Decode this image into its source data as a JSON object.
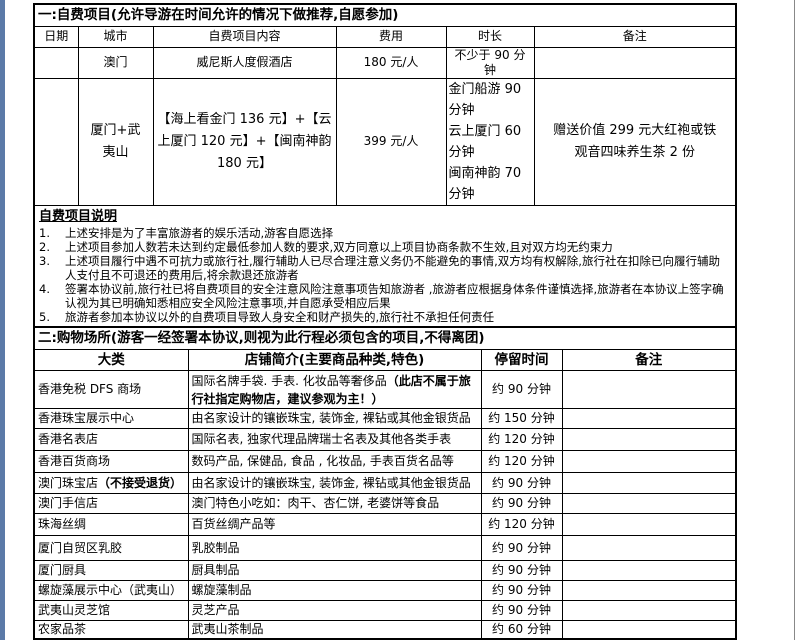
{
  "section1": {
    "title": "一:自费项目(允许导游在时间允许的情况下做推荐,自愿参加)",
    "headers": [
      "日期",
      "城市",
      "自费项目内容",
      "费用",
      "时长",
      "备注"
    ],
    "rows": [
      {
        "date": "",
        "city": "澳门",
        "content": "威尼斯人度假酒店",
        "fee": "180 元/人",
        "duration": "不少于 90 分钟",
        "note": ""
      },
      {
        "date": "",
        "city": "厦门+武夷山",
        "content": "【海上看金门 136 元】+【云上厦门 120 元】+【闽南神韵 180 元】",
        "fee": "399 元/人",
        "duration_lines": [
          "金门船游 90分钟",
          "云上厦门 60分钟",
          "闽南神韵 70分钟"
        ],
        "note": "赠送价值 299 元大红袍或铁观音四味养生茶 2 份"
      }
    ]
  },
  "explanation": {
    "title": "自费项目说明",
    "items": [
      {
        "n": "1.",
        "text": "上述安排是为了丰富旅游者的娱乐活动,游客自愿选择"
      },
      {
        "n": "2.",
        "text": "上述项目参加人数若未达到约定最低参加人数的要求,双方同意以上项目协商条款不生效,且对双方均无约束力"
      },
      {
        "n": "3.",
        "text": "上述项目履行中遇不可抗力或旅行社,履行辅助人已尽合理注意义务仍不能避免的事情,双方均有权解除,旅行社在扣除已向履行辅助人支付且不可退还的费用后,将余款退还旅游者"
      },
      {
        "n": "4.",
        "text": "签署本协议前,旅行社已将自费项目的安全注意风险注意事项告知旅游者 ,旅游者应根据身体条件谨慎选择,旅游者在本协议上签字确认视为其已明确知悉相应安全风险注意事项,并自愿承受相应后果"
      },
      {
        "n": "5.",
        "text": "旅游者参加本协议以外的自费项目导致人身安全和财产损失的,旅行社不承担任何责任"
      }
    ]
  },
  "section2": {
    "title": "二:购物场所(游客一经签署本协议,则视为此行程必须包含的项目,不得离团)",
    "headers": [
      "大类",
      "店铺简介(主要商品种类,特色)",
      "停留时间",
      "备注"
    ],
    "rows": [
      {
        "name": "香港免税 DFS 商场",
        "desc": "国际名牌手袋. 手表. 化妆品等奢侈品",
        "desc_bold": "（此店不属于旅行社指定购物店，建议参观为主！）",
        "time": "约 90 分钟",
        "note": ""
      },
      {
        "name": "香港珠宝展示中心",
        "desc": "由名家设计的镶嵌珠宝, 装饰金, 裸钻或其他金银货品",
        "time": "约 150 分钟",
        "note": ""
      },
      {
        "name": "香港名表店",
        "desc": "国际名表, 独家代理品牌瑞士名表及其他各类手表",
        "time": "约 120 分钟",
        "note": ""
      },
      {
        "name": "香港百货商场",
        "desc": "数码产品, 保健品, 食品 , 化妆品, 手表百货名品等",
        "time": "约 120 分钟",
        "note": ""
      },
      {
        "name": "澳门珠宝店",
        "name_bold": "（不接受退货）",
        "desc": "由名家设计的镶嵌珠宝, 装饰金, 裸钻或其他金银货品",
        "time": "约 90 分钟",
        "note": ""
      },
      {
        "name": "澳门手信店",
        "desc": "澳门特色小吃如：肉干、杏仁饼, 老婆饼等食品",
        "time": "约 90 分钟",
        "note": ""
      },
      {
        "name": "珠海丝绸",
        "desc": "百货丝绸产品等",
        "time": "约 120 分钟",
        "note": ""
      },
      {
        "name": "厦门自贸区乳胶",
        "desc": "乳胶制品",
        "time": "约 90 分钟",
        "note": ""
      },
      {
        "name": "厦门厨具",
        "desc": "厨具制品",
        "time": "约 90 分钟",
        "note": ""
      },
      {
        "name": "螺旋藻展示中心（武夷山）",
        "desc": "螺旋藻制品",
        "time": "约 90 分钟",
        "note": ""
      },
      {
        "name": "武夷山灵芝馆",
        "desc": "灵芝产品",
        "time": "约 90 分钟",
        "note": ""
      },
      {
        "name": "农家品茶",
        "desc": "武夷山茶制品",
        "time": "约 60 分钟",
        "note": ""
      }
    ]
  }
}
